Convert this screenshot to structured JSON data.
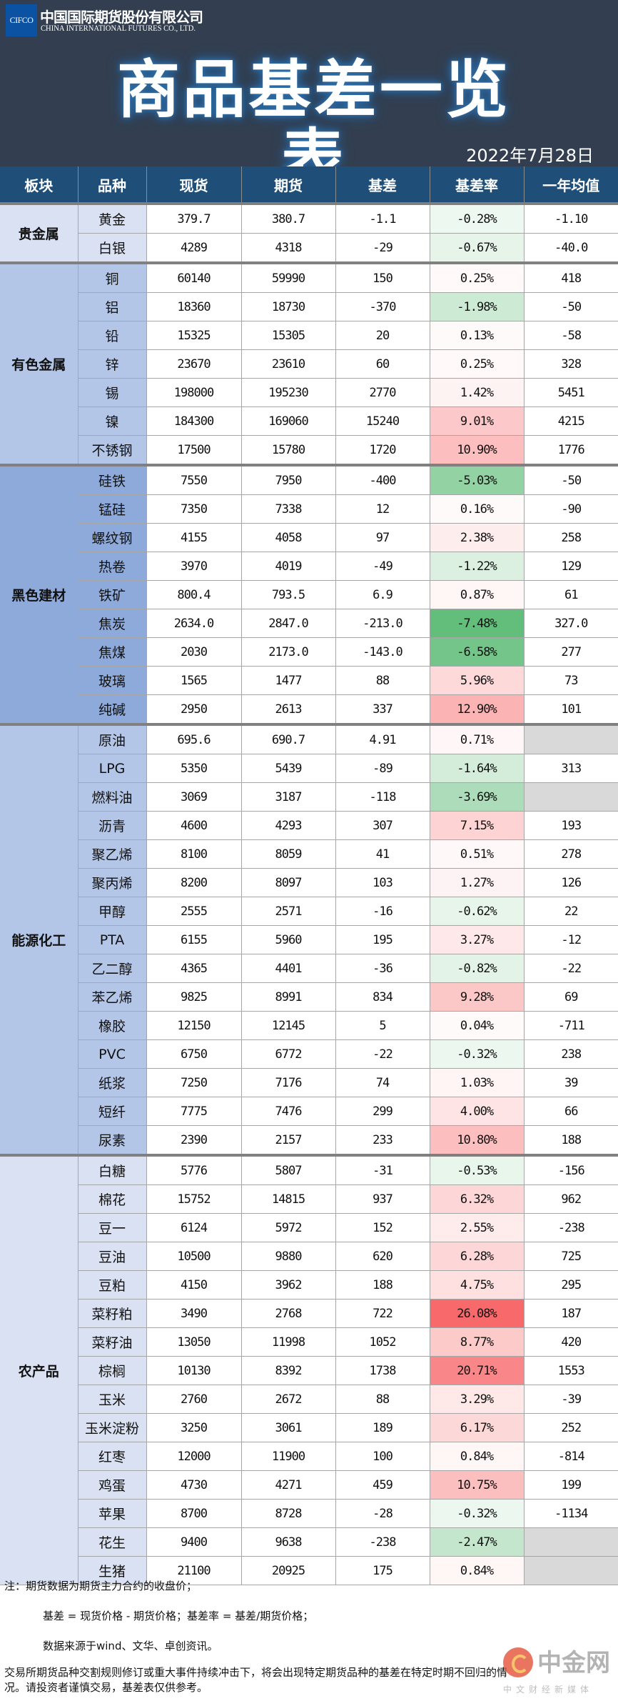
{
  "header": {
    "logo_text": "CIFCO",
    "company_cn": "中国国际期货股份有限公司",
    "company_en": "CHINA INTERNATIONAL FUTURES CO., LTD.",
    "title": "商品基差一览表",
    "date": "2022年7月28日"
  },
  "columns": [
    "板块",
    "品种",
    "现货",
    "期货",
    "基差",
    "基差率",
    "一年均值"
  ],
  "colors": {
    "header_bg": "#1f4e79",
    "top_bg": "#333f50",
    "rate_negative": "#63be7b",
    "rate_positive": "#f8696b",
    "no_data": "#d9d9d9"
  },
  "sections": [
    {
      "name": "贵金属",
      "color": "#dae1f3",
      "rows": [
        [
          "黄金",
          "379.7",
          "380.7",
          "-1.1",
          "-0.28%",
          "-1.10"
        ],
        [
          "白银",
          "4289",
          "4318",
          "-29",
          "-0.67%",
          "-40.0"
        ]
      ]
    },
    {
      "name": "有色金属",
      "color": "#b4c6e7",
      "rows": [
        [
          "铜",
          "60140",
          "59990",
          "150",
          "0.25%",
          "418"
        ],
        [
          "铝",
          "18360",
          "18730",
          "-370",
          "-1.98%",
          "-50"
        ],
        [
          "铅",
          "15325",
          "15305",
          "20",
          "0.13%",
          "-58"
        ],
        [
          "锌",
          "23670",
          "23610",
          "60",
          "0.25%",
          "328"
        ],
        [
          "锡",
          "198000",
          "195230",
          "2770",
          "1.42%",
          "5451"
        ],
        [
          "镍",
          "184300",
          "169060",
          "15240",
          "9.01%",
          "4215"
        ],
        [
          "不锈钢",
          "17500",
          "15780",
          "1720",
          "10.90%",
          "1776"
        ]
      ]
    },
    {
      "name": "黑色建材",
      "color": "#8eaadb",
      "rows": [
        [
          "硅铁",
          "7550",
          "7950",
          "-400",
          "-5.03%",
          "-50"
        ],
        [
          "锰硅",
          "7350",
          "7338",
          "12",
          "0.16%",
          "-90"
        ],
        [
          "螺纹钢",
          "4155",
          "4058",
          "97",
          "2.38%",
          "258"
        ],
        [
          "热卷",
          "3970",
          "4019",
          "-49",
          "-1.22%",
          "129"
        ],
        [
          "铁矿",
          "800.4",
          "793.5",
          "6.9",
          "0.87%",
          "61"
        ],
        [
          "焦炭",
          "2634.0",
          "2847.0",
          "-213.0",
          "-7.48%",
          "327.0"
        ],
        [
          "焦煤",
          "2030",
          "2173.0",
          "-143.0",
          "-6.58%",
          "277"
        ],
        [
          "玻璃",
          "1565",
          "1477",
          "88",
          "5.96%",
          "73"
        ],
        [
          "纯碱",
          "2950",
          "2613",
          "337",
          "12.90%",
          "101"
        ]
      ]
    },
    {
      "name": "能源化工",
      "color": "#b4c6e7",
      "rows": [
        [
          "原油",
          "695.6",
          "690.7",
          "4.91",
          "0.71%",
          ""
        ],
        [
          "LPG",
          "5350",
          "5439",
          "-89",
          "-1.64%",
          "313"
        ],
        [
          "燃料油",
          "3069",
          "3187",
          "-118",
          "-3.69%",
          ""
        ],
        [
          "沥青",
          "4600",
          "4293",
          "307",
          "7.15%",
          "193"
        ],
        [
          "聚乙烯",
          "8100",
          "8059",
          "41",
          "0.51%",
          "278"
        ],
        [
          "聚丙烯",
          "8200",
          "8097",
          "103",
          "1.27%",
          "126"
        ],
        [
          "甲醇",
          "2555",
          "2571",
          "-16",
          "-0.62%",
          "22"
        ],
        [
          "PTA",
          "6155",
          "5960",
          "195",
          "3.27%",
          "-12"
        ],
        [
          "乙二醇",
          "4365",
          "4401",
          "-36",
          "-0.82%",
          "-22"
        ],
        [
          "苯乙烯",
          "9825",
          "8991",
          "834",
          "9.28%",
          "69"
        ],
        [
          "橡胶",
          "12150",
          "12145",
          "5",
          "0.04%",
          "-711"
        ],
        [
          "PVC",
          "6750",
          "6772",
          "-22",
          "-0.32%",
          "238"
        ],
        [
          "纸浆",
          "7250",
          "7176",
          "74",
          "1.03%",
          "39"
        ],
        [
          "短纤",
          "7775",
          "7476",
          "299",
          "4.00%",
          "66"
        ],
        [
          "尿素",
          "2390",
          "2157",
          "233",
          "10.80%",
          "188"
        ]
      ]
    },
    {
      "name": "农产品",
      "color": "#d9e1f2",
      "rows": [
        [
          "白糖",
          "5776",
          "5807",
          "-31",
          "-0.53%",
          "-156"
        ],
        [
          "棉花",
          "15752",
          "14815",
          "937",
          "6.32%",
          "962"
        ],
        [
          "豆一",
          "6124",
          "5972",
          "152",
          "2.55%",
          "-238"
        ],
        [
          "豆油",
          "10500",
          "9880",
          "620",
          "6.28%",
          "725"
        ],
        [
          "豆粕",
          "4150",
          "3962",
          "188",
          "4.75%",
          "295"
        ],
        [
          "菜籽粕",
          "3490",
          "2768",
          "722",
          "26.08%",
          "187"
        ],
        [
          "菜籽油",
          "13050",
          "11998",
          "1052",
          "8.77%",
          "420"
        ],
        [
          "棕榈",
          "10130",
          "8392",
          "1738",
          "20.71%",
          "1553"
        ],
        [
          "玉米",
          "2760",
          "2672",
          "88",
          "3.29%",
          "-39"
        ],
        [
          "玉米淀粉",
          "3250",
          "3061",
          "189",
          "6.17%",
          "252"
        ],
        [
          "红枣",
          "12000",
          "11900",
          "100",
          "0.84%",
          "-814"
        ],
        [
          "鸡蛋",
          "4730",
          "4271",
          "459",
          "10.75%",
          "199"
        ],
        [
          "苹果",
          "8700",
          "8728",
          "-28",
          "-0.32%",
          "-1134"
        ],
        [
          "花生",
          "9400",
          "9638",
          "-238",
          "-2.47%",
          ""
        ],
        [
          "生猪",
          "21100",
          "20925",
          "175",
          "0.84%",
          ""
        ]
      ]
    }
  ],
  "notes": [
    "注：期货数据为期货主力合约的收盘价；",
    "基差 = 现货价格 - 期货价格；基差率 = 基差/期货价格；",
    "数据来源于wind、文华、卓创资讯。",
    "交易所期货品种交割规则修订或重大事件持续冲击下，将会出现特定期货品种的基差在特定时期不回归的情",
    "况。请投资者谨慎交易，基差表仅供参考。"
  ],
  "watermark": {
    "name": "中金网",
    "sub": "中文财经新媒体"
  }
}
